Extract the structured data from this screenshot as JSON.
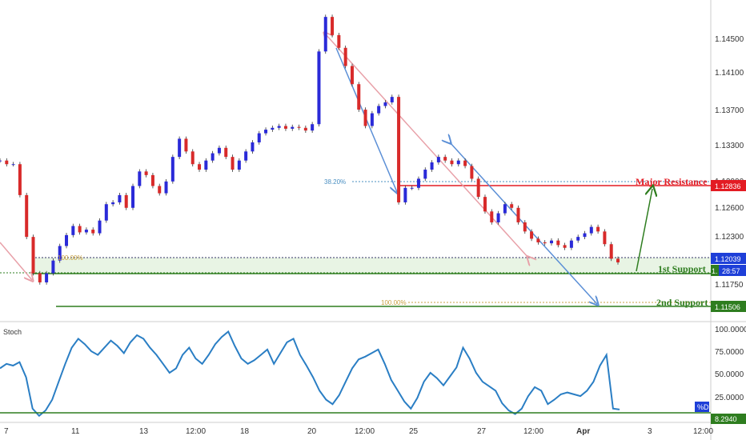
{
  "chart_data": [
    {
      "type": "candlestick",
      "pane": "price",
      "ylim": [
        1.1145,
        1.1475
      ],
      "y_ticks": [
        "1.14500",
        "1.14100",
        "1.13700",
        "1.13300",
        "1.12900",
        "1.12600",
        "1.12300",
        "1.11750"
      ],
      "x_ticks": [
        "7",
        "11",
        "13",
        "12:00",
        "18",
        "20",
        "12:00",
        "25",
        "27",
        "12:00",
        "Apr",
        "3",
        "12:00"
      ],
      "series": [
        {
          "values": [
            1.1316,
            1.1312,
            1.1312,
            1.1278,
            1.1232,
            1.1192,
            1.1182,
            1.1192,
            1.1206,
            1.1222,
            1.1234,
            1.1244,
            1.1237,
            1.124,
            1.1236,
            1.125,
            1.1268,
            1.127,
            1.1278,
            1.1264,
            1.1288,
            1.1304,
            1.13,
            1.1288,
            1.128,
            1.1293,
            1.132,
            1.134,
            1.1326,
            1.1312,
            1.1306,
            1.1316,
            1.1324,
            1.133,
            1.132,
            1.1306,
            1.1316,
            1.1326,
            1.1336,
            1.1346,
            1.135,
            1.1352,
            1.1354,
            1.1351,
            1.1353,
            1.1352,
            1.1349,
            1.1356,
            1.1436,
            1.1474,
            1.1454,
            1.144,
            1.142,
            1.14,
            1.1372,
            1.1354,
            1.1368,
            1.1376,
            1.138,
            1.1386,
            1.127,
            1.1286,
            1.1286,
            1.1296,
            1.1306,
            1.1314,
            1.132,
            1.1316,
            1.1312,
            1.1316,
            1.131,
            1.1296,
            1.1276,
            1.126,
            1.1248,
            1.1258,
            1.1268,
            1.1264,
            1.1248,
            1.1238,
            1.123,
            1.1226,
            1.1225,
            1.1228,
            1.1223,
            1.122,
            1.1228,
            1.1232,
            1.1236,
            1.1243,
            1.1238,
            1.1224,
            1.1208,
            1.1204
          ]
        }
      ],
      "levels": [
        {
          "label": "Major Resistance",
          "value": 1.12836,
          "color": "#e31b23"
        },
        {
          "label": "1st Support",
          "value": 1.1185,
          "color": "#2e7d1f"
        },
        {
          "label": "2nd Support",
          "value": 1.11506,
          "color": "#2e7d1f"
        }
      ],
      "fib_labels": [
        "38.20%",
        "100.00%",
        "100.00%"
      ],
      "price_badges": [
        {
          "text": "1.12836",
          "color": "#e31b23"
        },
        {
          "text": "1.12039",
          "color": "#1e3fd8"
        },
        {
          "text": "28:57",
          "color": "#1e3fd8"
        },
        {
          "text": "1.",
          "color": "#2e7d1f"
        },
        {
          "text": "1.11506",
          "color": "#2e7d1f"
        }
      ]
    },
    {
      "type": "line",
      "pane": "stochastic",
      "title": "Stoch",
      "ylim": [
        0,
        100
      ],
      "y_ticks": [
        "100.0000",
        "75.0000",
        "50.0000",
        "25.0000"
      ],
      "series": [
        {
          "values": [
            55,
            60,
            58,
            62,
            45,
            10,
            2,
            8,
            20,
            40,
            60,
            78,
            88,
            82,
            74,
            70,
            78,
            86,
            80,
            72,
            84,
            92,
            88,
            78,
            70,
            60,
            50,
            55,
            70,
            78,
            66,
            60,
            70,
            82,
            90,
            96,
            80,
            66,
            60,
            64,
            70,
            76,
            60,
            72,
            84,
            88,
            70,
            58,
            45,
            30,
            20,
            15,
            25,
            40,
            55,
            65,
            68,
            72,
            76,
            60,
            42,
            30,
            18,
            10,
            22,
            40,
            50,
            44,
            36,
            46,
            56,
            78,
            66,
            50,
            40,
            35,
            30,
            16,
            8,
            4,
            10,
            24,
            34,
            30,
            15,
            20,
            26,
            28,
            26,
            24,
            30,
            40,
            58,
            70,
            10,
            9
          ]
        }
      ],
      "level_value": 8.294,
      "badges": [
        {
          "text": "%D",
          "color": "#1e3fd8"
        },
        {
          "text": "8.2940",
          "color": "#2e7d1f"
        }
      ]
    }
  ]
}
